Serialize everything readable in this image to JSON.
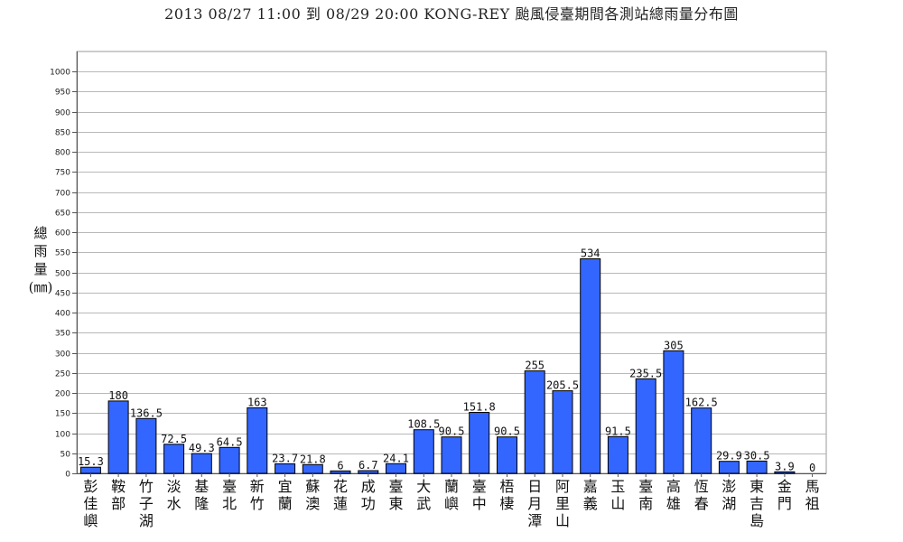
{
  "chart_data": {
    "type": "bar",
    "title": "2013 08/27 11:00 到 08/29 20:00 KONG-REY 颱風侵臺期間各測站總雨量分布圖",
    "ylabel": "總雨量(㎜)",
    "ylabel_chars": [
      "總",
      "雨",
      "量",
      "(㎜)"
    ],
    "ylim": [
      0,
      1050
    ],
    "yticks": [
      0,
      50,
      100,
      150,
      200,
      250,
      300,
      350,
      400,
      450,
      500,
      550,
      600,
      650,
      700,
      750,
      800,
      850,
      900,
      950,
      1000
    ],
    "grid": true,
    "bar_color": "#3366ff",
    "categories": [
      "彭佳嶼",
      "鞍部",
      "竹子湖",
      "淡水",
      "基隆",
      "臺北",
      "新竹",
      "宜蘭",
      "蘇澳",
      "花蓮",
      "成功",
      "臺東",
      "大武",
      "蘭嶼",
      "臺中",
      "梧棲",
      "日月潭",
      "阿里山",
      "嘉義",
      "玉山",
      "臺南",
      "高雄",
      "恆春",
      "澎湖",
      "東吉島",
      "金門",
      "馬祖"
    ],
    "values": [
      15.3,
      180,
      136.5,
      72.5,
      49.3,
      64.5,
      163,
      23.7,
      21.8,
      6,
      6.7,
      24.1,
      108.5,
      90.5,
      151.8,
      90.5,
      255,
      205.5,
      534,
      91.5,
      235.5,
      305,
      162.5,
      29.9,
      30.5,
      3.9,
      0
    ],
    "value_labels": [
      "15.3",
      "180",
      "136.5",
      "72.5",
      "49.3",
      "64.5",
      "163",
      "23.7",
      "21.8",
      "6",
      "6.7",
      "24.1",
      "108.5",
      "90.5",
      "151.8",
      "90.5",
      "255",
      "205.5",
      "534",
      "91.5",
      "235.5",
      "305",
      "162.5",
      "29.9",
      "30.5",
      "3.9",
      "0"
    ]
  }
}
